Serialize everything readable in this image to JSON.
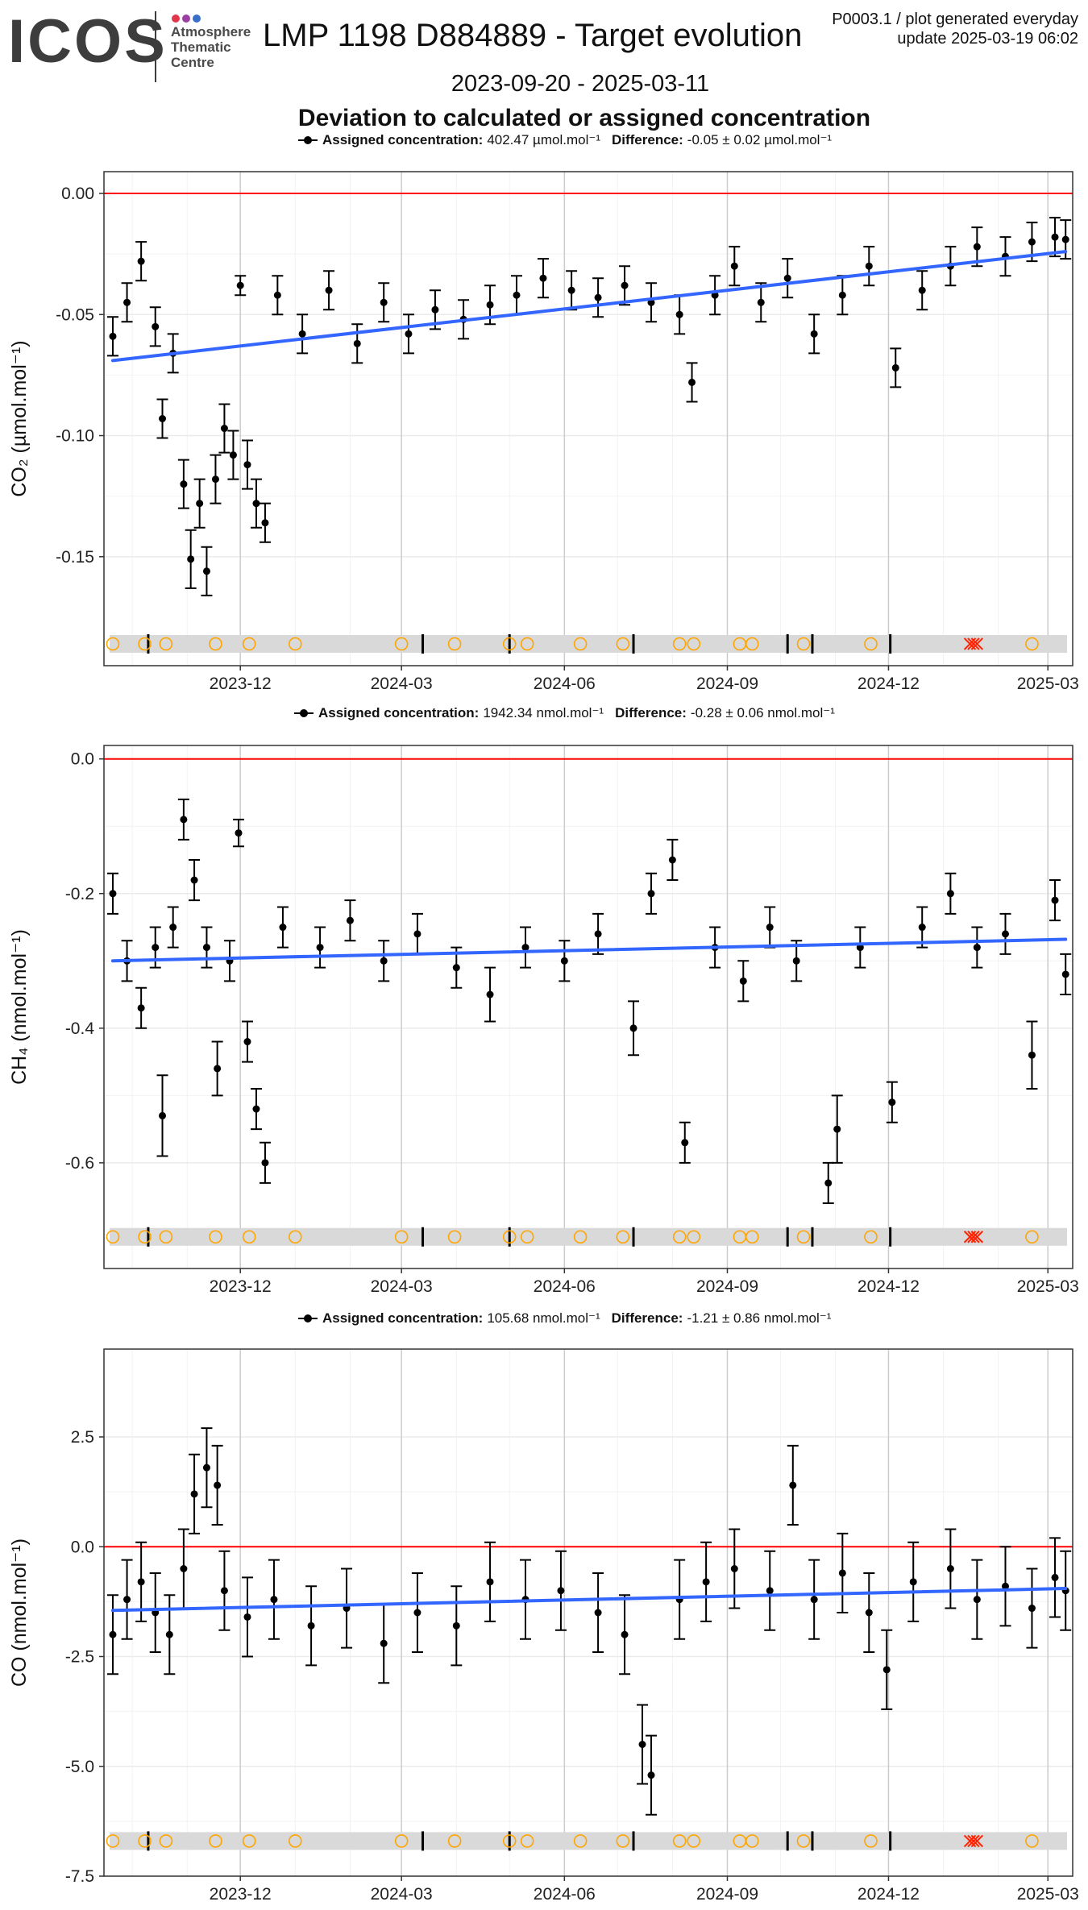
{
  "header": {
    "logo_text": "ICOS",
    "logo_sub": [
      "Atmosphere",
      "Thematic",
      "Centre"
    ],
    "logo_dot_colors": [
      "#e2364d",
      "#9b3fa4",
      "#3a6fc9"
    ],
    "title": "LMP 1198 D884889 - Target evolution",
    "meta_line1": "P0003.1 / plot generated everyday",
    "meta_line2": "update  2025-03-19 06:02",
    "period": "2023-09-20 - 2025-03-11",
    "section_title": "Deviation to calculated or assigned concentration"
  },
  "colors": {
    "zero_line": "#ff0000",
    "trend": "#3366ff",
    "points": "#000000",
    "panel_bg": "#ffffff",
    "grid": "#ebebeb",
    "band": "#d9d9d9",
    "event_circle": "#ffa500",
    "event_cross": "#ff2200"
  },
  "chart_data": [
    {
      "type": "scatter",
      "legend": {
        "assigned_label": "Assigned concentration:",
        "assigned_value": "402.47",
        "difference_label": "Difference:",
        "difference_value": "-0.05 ± 0.02",
        "unit": "µmol.mol⁻¹"
      },
      "ylabel": "CO₂ (µmol.mol⁻¹)",
      "xlim": [
        "2023-09-15",
        "2025-03-15"
      ],
      "ylim": [
        -0.195,
        0.009
      ],
      "yticks": [
        0.0,
        -0.05,
        -0.1,
        -0.15
      ],
      "ytick_labels": [
        "0.00",
        "-0.05",
        "-0.10",
        "-0.15"
      ],
      "xticks": [
        "2023-12-01",
        "2024-03-01",
        "2024-06-01",
        "2024-09-01",
        "2024-12-01",
        "2025-03-01"
      ],
      "xtick_labels": [
        "2023-12",
        "2024-03",
        "2024-06",
        "2024-09",
        "2024-12",
        "2025-03"
      ],
      "reference_line": 0.0,
      "trend": [
        {
          "x": "2023-09-20",
          "y": -0.069
        },
        {
          "x": "2025-03-11",
          "y": -0.024
        }
      ],
      "event_band_y": -0.186,
      "series": [
        {
          "x": "2023-09-20",
          "y": -0.059,
          "err": 0.008
        },
        {
          "x": "2023-09-28",
          "y": -0.045,
          "err": 0.008
        },
        {
          "x": "2023-10-06",
          "y": -0.028,
          "err": 0.008
        },
        {
          "x": "2023-10-14",
          "y": -0.055,
          "err": 0.008
        },
        {
          "x": "2023-10-18",
          "y": -0.093,
          "err": 0.008
        },
        {
          "x": "2023-10-24",
          "y": -0.066,
          "err": 0.008
        },
        {
          "x": "2023-10-30",
          "y": -0.12,
          "err": 0.01
        },
        {
          "x": "2023-11-03",
          "y": -0.151,
          "err": 0.012
        },
        {
          "x": "2023-11-08",
          "y": -0.128,
          "err": 0.01
        },
        {
          "x": "2023-11-12",
          "y": -0.156,
          "err": 0.01
        },
        {
          "x": "2023-11-17",
          "y": -0.118,
          "err": 0.01
        },
        {
          "x": "2023-11-22",
          "y": -0.097,
          "err": 0.01
        },
        {
          "x": "2023-11-27",
          "y": -0.108,
          "err": 0.01
        },
        {
          "x": "2023-12-01",
          "y": -0.038,
          "err": 0.004
        },
        {
          "x": "2023-12-05",
          "y": -0.112,
          "err": 0.01
        },
        {
          "x": "2023-12-10",
          "y": -0.128,
          "err": 0.01
        },
        {
          "x": "2023-12-15",
          "y": -0.136,
          "err": 0.008
        },
        {
          "x": "2023-12-22",
          "y": -0.042,
          "err": 0.008
        },
        {
          "x": "2024-01-05",
          "y": -0.058,
          "err": 0.008
        },
        {
          "x": "2024-01-20",
          "y": -0.04,
          "err": 0.008
        },
        {
          "x": "2024-02-05",
          "y": -0.062,
          "err": 0.008
        },
        {
          "x": "2024-02-20",
          "y": -0.045,
          "err": 0.008
        },
        {
          "x": "2024-03-05",
          "y": -0.058,
          "err": 0.008
        },
        {
          "x": "2024-03-20",
          "y": -0.048,
          "err": 0.008
        },
        {
          "x": "2024-04-05",
          "y": -0.052,
          "err": 0.008
        },
        {
          "x": "2024-04-20",
          "y": -0.046,
          "err": 0.008
        },
        {
          "x": "2024-05-05",
          "y": -0.042,
          "err": 0.008
        },
        {
          "x": "2024-05-20",
          "y": -0.035,
          "err": 0.008
        },
        {
          "x": "2024-06-05",
          "y": -0.04,
          "err": 0.008
        },
        {
          "x": "2024-06-20",
          "y": -0.043,
          "err": 0.008
        },
        {
          "x": "2024-07-05",
          "y": -0.038,
          "err": 0.008
        },
        {
          "x": "2024-07-20",
          "y": -0.045,
          "err": 0.008
        },
        {
          "x": "2024-08-05",
          "y": -0.05,
          "err": 0.008
        },
        {
          "x": "2024-08-12",
          "y": -0.078,
          "err": 0.008
        },
        {
          "x": "2024-08-25",
          "y": -0.042,
          "err": 0.008
        },
        {
          "x": "2024-09-05",
          "y": -0.03,
          "err": 0.008
        },
        {
          "x": "2024-09-20",
          "y": -0.045,
          "err": 0.008
        },
        {
          "x": "2024-10-05",
          "y": -0.035,
          "err": 0.008
        },
        {
          "x": "2024-10-20",
          "y": -0.058,
          "err": 0.008
        },
        {
          "x": "2024-11-05",
          "y": -0.042,
          "err": 0.008
        },
        {
          "x": "2024-11-20",
          "y": -0.03,
          "err": 0.008
        },
        {
          "x": "2024-12-05",
          "y": -0.072,
          "err": 0.008
        },
        {
          "x": "2024-12-20",
          "y": -0.04,
          "err": 0.008
        },
        {
          "x": "2025-01-05",
          "y": -0.03,
          "err": 0.008
        },
        {
          "x": "2025-01-20",
          "y": -0.022,
          "err": 0.008
        },
        {
          "x": "2025-02-05",
          "y": -0.026,
          "err": 0.008
        },
        {
          "x": "2025-02-20",
          "y": -0.02,
          "err": 0.008
        },
        {
          "x": "2025-03-05",
          "y": -0.018,
          "err": 0.008
        },
        {
          "x": "2025-03-11",
          "y": -0.019,
          "err": 0.008
        }
      ]
    },
    {
      "type": "scatter",
      "legend": {
        "assigned_label": "Assigned concentration:",
        "assigned_value": "1942.34",
        "difference_label": "Difference:",
        "difference_value": "-0.28 ± 0.06",
        "unit": "nmol.mol⁻¹"
      },
      "ylabel": "CH₄ (nmol.mol⁻¹)",
      "xlim": [
        "2023-09-15",
        "2025-03-15"
      ],
      "ylim": [
        -0.757,
        0.02
      ],
      "yticks": [
        0.0,
        -0.2,
        -0.4,
        -0.6
      ],
      "ytick_labels": [
        "0.0",
        "-0.2",
        "-0.4",
        "-0.6"
      ],
      "xticks": [
        "2023-12-01",
        "2024-03-01",
        "2024-06-01",
        "2024-09-01",
        "2024-12-01",
        "2025-03-01"
      ],
      "xtick_labels": [
        "2023-12",
        "2024-03",
        "2024-06",
        "2024-09",
        "2024-12",
        "2025-03"
      ],
      "reference_line": 0.0,
      "trend": [
        {
          "x": "2023-09-20",
          "y": -0.3
        },
        {
          "x": "2025-03-11",
          "y": -0.268
        }
      ],
      "event_band_y": -0.71,
      "series": [
        {
          "x": "2023-09-20",
          "y": -0.2,
          "err": 0.03
        },
        {
          "x": "2023-09-28",
          "y": -0.3,
          "err": 0.03
        },
        {
          "x": "2023-10-06",
          "y": -0.37,
          "err": 0.03
        },
        {
          "x": "2023-10-14",
          "y": -0.28,
          "err": 0.03
        },
        {
          "x": "2023-10-18",
          "y": -0.53,
          "err": 0.06
        },
        {
          "x": "2023-10-24",
          "y": -0.25,
          "err": 0.03
        },
        {
          "x": "2023-10-30",
          "y": -0.09,
          "err": 0.03
        },
        {
          "x": "2023-11-05",
          "y": -0.18,
          "err": 0.03
        },
        {
          "x": "2023-11-12",
          "y": -0.28,
          "err": 0.03
        },
        {
          "x": "2023-11-18",
          "y": -0.46,
          "err": 0.04
        },
        {
          "x": "2023-11-25",
          "y": -0.3,
          "err": 0.03
        },
        {
          "x": "2023-11-30",
          "y": -0.11,
          "err": 0.02
        },
        {
          "x": "2023-12-05",
          "y": -0.42,
          "err": 0.03
        },
        {
          "x": "2023-12-10",
          "y": -0.52,
          "err": 0.03
        },
        {
          "x": "2023-12-15",
          "y": -0.6,
          "err": 0.03
        },
        {
          "x": "2023-12-25",
          "y": -0.25,
          "err": 0.03
        },
        {
          "x": "2024-01-15",
          "y": -0.28,
          "err": 0.03
        },
        {
          "x": "2024-02-01",
          "y": -0.24,
          "err": 0.03
        },
        {
          "x": "2024-02-20",
          "y": -0.3,
          "err": 0.03
        },
        {
          "x": "2024-03-10",
          "y": -0.26,
          "err": 0.03
        },
        {
          "x": "2024-04-01",
          "y": -0.31,
          "err": 0.03
        },
        {
          "x": "2024-04-20",
          "y": -0.35,
          "err": 0.04
        },
        {
          "x": "2024-05-10",
          "y": -0.28,
          "err": 0.03
        },
        {
          "x": "2024-06-01",
          "y": -0.3,
          "err": 0.03
        },
        {
          "x": "2024-06-20",
          "y": -0.26,
          "err": 0.03
        },
        {
          "x": "2024-07-10",
          "y": -0.4,
          "err": 0.04
        },
        {
          "x": "2024-07-20",
          "y": -0.2,
          "err": 0.03
        },
        {
          "x": "2024-08-01",
          "y": -0.15,
          "err": 0.03
        },
        {
          "x": "2024-08-08",
          "y": -0.57,
          "err": 0.03
        },
        {
          "x": "2024-08-25",
          "y": -0.28,
          "err": 0.03
        },
        {
          "x": "2024-09-10",
          "y": -0.33,
          "err": 0.03
        },
        {
          "x": "2024-09-25",
          "y": -0.25,
          "err": 0.03
        },
        {
          "x": "2024-10-10",
          "y": -0.3,
          "err": 0.03
        },
        {
          "x": "2024-10-28",
          "y": -0.63,
          "err": 0.03
        },
        {
          "x": "2024-11-02",
          "y": -0.55,
          "err": 0.05
        },
        {
          "x": "2024-11-15",
          "y": -0.28,
          "err": 0.03
        },
        {
          "x": "2024-12-03",
          "y": -0.51,
          "err": 0.03
        },
        {
          "x": "2024-12-20",
          "y": -0.25,
          "err": 0.03
        },
        {
          "x": "2025-01-05",
          "y": -0.2,
          "err": 0.03
        },
        {
          "x": "2025-01-20",
          "y": -0.28,
          "err": 0.03
        },
        {
          "x": "2025-02-05",
          "y": -0.26,
          "err": 0.03
        },
        {
          "x": "2025-02-20",
          "y": -0.44,
          "err": 0.05
        },
        {
          "x": "2025-03-05",
          "y": -0.21,
          "err": 0.03
        },
        {
          "x": "2025-03-11",
          "y": -0.32,
          "err": 0.03
        }
      ]
    },
    {
      "type": "scatter",
      "legend": {
        "assigned_label": "Assigned concentration:",
        "assigned_value": "105.68",
        "difference_label": "Difference:",
        "difference_value": "-1.21 ± 0.86",
        "unit": "nmol.mol⁻¹"
      },
      "ylabel": "CO (nmol.mol⁻¹)",
      "xlim": [
        "2023-09-15",
        "2025-03-15"
      ],
      "ylim": [
        -7.5,
        4.5
      ],
      "yticks": [
        2.5,
        0.0,
        -2.5,
        -5.0,
        -7.5
      ],
      "ytick_labels": [
        "2.5",
        "0.0",
        "-2.5",
        "-5.0",
        "-7.5"
      ],
      "xticks": [
        "2023-12-01",
        "2024-03-01",
        "2024-06-01",
        "2024-09-01",
        "2024-12-01",
        "2025-03-01"
      ],
      "xtick_labels": [
        "2023-12",
        "2024-03",
        "2024-06",
        "2024-09",
        "2024-12",
        "2025-03"
      ],
      "reference_line": 0.0,
      "trend": [
        {
          "x": "2023-09-20",
          "y": -1.45
        },
        {
          "x": "2025-03-11",
          "y": -0.95
        }
      ],
      "event_band_y": -6.7,
      "series": [
        {
          "x": "2023-09-20",
          "y": -2.0,
          "err": 0.9
        },
        {
          "x": "2023-09-28",
          "y": -1.2,
          "err": 0.9
        },
        {
          "x": "2023-10-06",
          "y": -0.8,
          "err": 0.9
        },
        {
          "x": "2023-10-14",
          "y": -1.5,
          "err": 0.9
        },
        {
          "x": "2023-10-22",
          "y": -2.0,
          "err": 0.9
        },
        {
          "x": "2023-10-30",
          "y": -0.5,
          "err": 0.9
        },
        {
          "x": "2023-11-05",
          "y": 1.2,
          "err": 0.9
        },
        {
          "x": "2023-11-12",
          "y": 1.8,
          "err": 0.9
        },
        {
          "x": "2023-11-18",
          "y": 1.4,
          "err": 0.9
        },
        {
          "x": "2023-11-22",
          "y": -1.0,
          "err": 0.9
        },
        {
          "x": "2023-12-05",
          "y": -1.6,
          "err": 0.9
        },
        {
          "x": "2023-12-20",
          "y": -1.2,
          "err": 0.9
        },
        {
          "x": "2024-01-10",
          "y": -1.8,
          "err": 0.9
        },
        {
          "x": "2024-01-30",
          "y": -1.4,
          "err": 0.9
        },
        {
          "x": "2024-02-20",
          "y": -2.2,
          "err": 0.9
        },
        {
          "x": "2024-03-10",
          "y": -1.5,
          "err": 0.9
        },
        {
          "x": "2024-04-01",
          "y": -1.8,
          "err": 0.9
        },
        {
          "x": "2024-04-20",
          "y": -0.8,
          "err": 0.9
        },
        {
          "x": "2024-05-10",
          "y": -1.2,
          "err": 0.9
        },
        {
          "x": "2024-05-30",
          "y": -1.0,
          "err": 0.9
        },
        {
          "x": "2024-06-20",
          "y": -1.5,
          "err": 0.9
        },
        {
          "x": "2024-07-05",
          "y": -2.0,
          "err": 0.9
        },
        {
          "x": "2024-07-15",
          "y": -4.5,
          "err": 0.9
        },
        {
          "x": "2024-07-20",
          "y": -5.2,
          "err": 0.9
        },
        {
          "x": "2024-08-05",
          "y": -1.2,
          "err": 0.9
        },
        {
          "x": "2024-08-20",
          "y": -0.8,
          "err": 0.9
        },
        {
          "x": "2024-09-05",
          "y": -0.5,
          "err": 0.9
        },
        {
          "x": "2024-09-25",
          "y": -1.0,
          "err": 0.9
        },
        {
          "x": "2024-10-08",
          "y": 1.4,
          "err": 0.9
        },
        {
          "x": "2024-10-20",
          "y": -1.2,
          "err": 0.9
        },
        {
          "x": "2024-11-05",
          "y": -0.6,
          "err": 0.9
        },
        {
          "x": "2024-11-20",
          "y": -1.5,
          "err": 0.9
        },
        {
          "x": "2024-11-30",
          "y": -2.8,
          "err": 0.9
        },
        {
          "x": "2024-12-15",
          "y": -0.8,
          "err": 0.9
        },
        {
          "x": "2025-01-05",
          "y": -0.5,
          "err": 0.9
        },
        {
          "x": "2025-01-20",
          "y": -1.2,
          "err": 0.9
        },
        {
          "x": "2025-02-05",
          "y": -0.9,
          "err": 0.9
        },
        {
          "x": "2025-02-20",
          "y": -1.4,
          "err": 0.9
        },
        {
          "x": "2025-03-05",
          "y": -0.7,
          "err": 0.9
        },
        {
          "x": "2025-03-11",
          "y": -1.0,
          "err": 0.9
        }
      ]
    }
  ],
  "events": {
    "circle_dates": [
      "2023-09-20",
      "2023-10-08",
      "2023-10-20",
      "2023-11-17",
      "2023-12-06",
      "2024-01-01",
      "2024-03-01",
      "2024-03-31",
      "2024-05-01",
      "2024-05-11",
      "2024-06-10",
      "2024-07-04",
      "2024-08-05",
      "2024-08-13",
      "2024-09-08",
      "2024-09-15",
      "2024-10-14",
      "2024-11-21",
      "2025-02-20"
    ],
    "bar_dates": [
      "2023-10-10",
      "2024-03-13",
      "2024-05-01",
      "2024-07-10",
      "2024-10-05",
      "2024-10-19",
      "2024-12-02"
    ],
    "cross_dates": [
      "2025-01-16",
      "2025-01-18",
      "2025-01-20"
    ]
  }
}
